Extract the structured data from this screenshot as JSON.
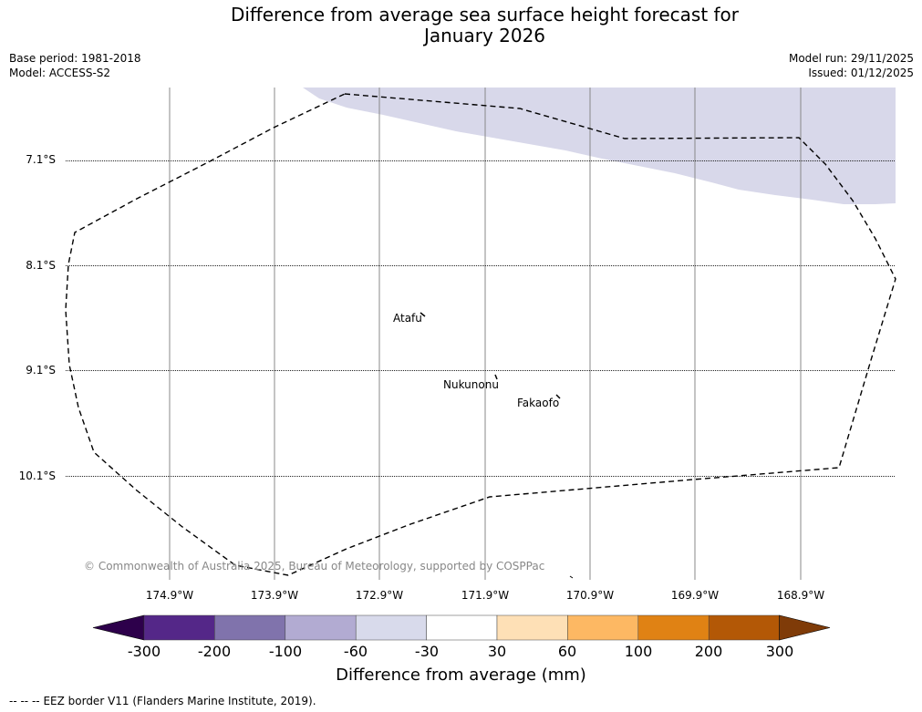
{
  "title": {
    "line1": "Difference from average sea surface height forecast for",
    "line2": "January 2026"
  },
  "meta": {
    "base_period": "Base period: 1981-2018",
    "model": "Model: ACCESS-S2",
    "model_run": "Model run: 29/11/2025",
    "issued": "Issued: 01/12/2025"
  },
  "map": {
    "lat_ticks": [
      "7.1°S",
      "8.1°S",
      "9.1°S",
      "10.1°S"
    ],
    "lon_ticks": [
      "174.9°W",
      "173.9°W",
      "172.9°W",
      "171.9°W",
      "170.9°W",
      "169.9°W",
      "168.9°W"
    ],
    "places": [
      "Atafu",
      "Nukunonu",
      "Fakaofo"
    ],
    "copyright": "© Commonwealth of Australia 2025, Bureau of Meteorology, supported by COSPPac",
    "anomaly_fill_color": "#d8d8ea"
  },
  "colorbar": {
    "title": "Difference from average (mm)",
    "labels": [
      "-300",
      "-200",
      "-100",
      "-60",
      "-30",
      "30",
      "60",
      "100",
      "200",
      "300"
    ],
    "under_color": "#2d004b",
    "over_color": "#7f3b08",
    "colors": [
      "#542788",
      "#8073ac",
      "#b2abd2",
      "#d8daeb",
      "#ffffff",
      "#fee0b6",
      "#fdb863",
      "#e08214",
      "#b35806"
    ]
  },
  "footer": {
    "legend_symbol": "-- -- --",
    "legend_text": "EEZ border V11 (Flanders Marine Institute, 2019)."
  }
}
